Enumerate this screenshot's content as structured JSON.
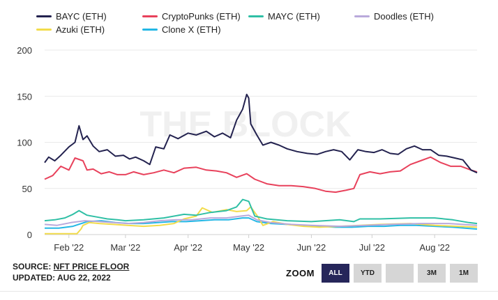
{
  "legend": [
    {
      "name": "BAYC (ETH)",
      "color": "#23224f"
    },
    {
      "name": "CryptoPunks (ETH)",
      "color": "#e8415b"
    },
    {
      "name": "MAYC (ETH)",
      "color": "#2fbfa5"
    },
    {
      "name": "Doodles (ETH)",
      "color": "#b9a9db"
    },
    {
      "name": "Azuki (ETH)",
      "color": "#f2dc4b"
    },
    {
      "name": "Clone X (ETH)",
      "color": "#23b7e5"
    }
  ],
  "watermark": "THE BLOCK",
  "footer": {
    "source_prefix": "SOURCE: ",
    "source_link": "NFT PRICE FLOOR",
    "updated": "UPDATED: AUG 22, 2022"
  },
  "zoom": {
    "label": "ZOOM",
    "buttons": [
      "ALL",
      "YTD",
      "",
      "3M",
      "1M"
    ],
    "active": "ALL"
  },
  "chart_data": {
    "type": "line",
    "title": "",
    "xlabel": "",
    "ylabel": "",
    "ylim": [
      0,
      200
    ],
    "yticks": [
      0,
      50,
      100,
      150,
      200
    ],
    "x_range": [
      "2022-01-20",
      "2022-08-22"
    ],
    "x_ticks": [
      {
        "date": "2022-02-01",
        "label": "Feb '22"
      },
      {
        "date": "2022-03-01",
        "label": "Mar '22"
      },
      {
        "date": "2022-04-01",
        "label": "Apr '22"
      },
      {
        "date": "2022-05-01",
        "label": "May '22"
      },
      {
        "date": "2022-06-01",
        "label": "Jun '22"
      },
      {
        "date": "2022-07-01",
        "label": "Jul '22"
      },
      {
        "date": "2022-08-01",
        "label": "Aug '22"
      }
    ],
    "grid": true,
    "legend_position": "top",
    "series": [
      {
        "name": "BAYC (ETH)",
        "color": "#23224f",
        "points": [
          [
            "2022-01-20",
            78
          ],
          [
            "2022-01-22",
            84
          ],
          [
            "2022-01-25",
            80
          ],
          [
            "2022-01-28",
            86
          ],
          [
            "2022-02-01",
            95
          ],
          [
            "2022-02-04",
            100
          ],
          [
            "2022-02-06",
            118
          ],
          [
            "2022-02-08",
            103
          ],
          [
            "2022-02-10",
            107
          ],
          [
            "2022-02-13",
            96
          ],
          [
            "2022-02-16",
            90
          ],
          [
            "2022-02-20",
            92
          ],
          [
            "2022-02-24",
            85
          ],
          [
            "2022-02-28",
            86
          ],
          [
            "2022-03-03",
            82
          ],
          [
            "2022-03-06",
            84
          ],
          [
            "2022-03-10",
            80
          ],
          [
            "2022-03-13",
            76
          ],
          [
            "2022-03-16",
            95
          ],
          [
            "2022-03-20",
            93
          ],
          [
            "2022-03-23",
            108
          ],
          [
            "2022-03-27",
            104
          ],
          [
            "2022-04-01",
            110
          ],
          [
            "2022-04-05",
            108
          ],
          [
            "2022-04-10",
            112
          ],
          [
            "2022-04-14",
            106
          ],
          [
            "2022-04-18",
            110
          ],
          [
            "2022-04-22",
            105
          ],
          [
            "2022-04-25",
            124
          ],
          [
            "2022-04-28",
            136
          ],
          [
            "2022-04-30",
            152
          ],
          [
            "2022-05-01",
            148
          ],
          [
            "2022-05-02",
            120
          ],
          [
            "2022-05-05",
            108
          ],
          [
            "2022-05-08",
            97
          ],
          [
            "2022-05-12",
            100
          ],
          [
            "2022-05-16",
            97
          ],
          [
            "2022-05-20",
            93
          ],
          [
            "2022-05-25",
            90
          ],
          [
            "2022-05-30",
            88
          ],
          [
            "2022-06-04",
            87
          ],
          [
            "2022-06-08",
            90
          ],
          [
            "2022-06-12",
            92
          ],
          [
            "2022-06-16",
            90
          ],
          [
            "2022-06-20",
            81
          ],
          [
            "2022-06-24",
            92
          ],
          [
            "2022-06-28",
            90
          ],
          [
            "2022-07-02",
            89
          ],
          [
            "2022-07-06",
            92
          ],
          [
            "2022-07-10",
            88
          ],
          [
            "2022-07-14",
            87
          ],
          [
            "2022-07-18",
            93
          ],
          [
            "2022-07-22",
            96
          ],
          [
            "2022-07-26",
            92
          ],
          [
            "2022-07-30",
            92
          ],
          [
            "2022-08-03",
            86
          ],
          [
            "2022-08-07",
            85
          ],
          [
            "2022-08-11",
            83
          ],
          [
            "2022-08-15",
            81
          ],
          [
            "2022-08-19",
            70
          ],
          [
            "2022-08-22",
            67
          ]
        ]
      },
      {
        "name": "CryptoPunks (ETH)",
        "color": "#e8415b",
        "points": [
          [
            "2022-01-20",
            60
          ],
          [
            "2022-01-24",
            64
          ],
          [
            "2022-01-28",
            74
          ],
          [
            "2022-02-01",
            70
          ],
          [
            "2022-02-04",
            83
          ],
          [
            "2022-02-08",
            80
          ],
          [
            "2022-02-10",
            70
          ],
          [
            "2022-02-13",
            71
          ],
          [
            "2022-02-17",
            66
          ],
          [
            "2022-02-21",
            68
          ],
          [
            "2022-02-25",
            65
          ],
          [
            "2022-03-01",
            65
          ],
          [
            "2022-03-05",
            68
          ],
          [
            "2022-03-10",
            65
          ],
          [
            "2022-03-15",
            67
          ],
          [
            "2022-03-20",
            70
          ],
          [
            "2022-03-25",
            67
          ],
          [
            "2022-03-30",
            72
          ],
          [
            "2022-04-05",
            73
          ],
          [
            "2022-04-10",
            70
          ],
          [
            "2022-04-15",
            69
          ],
          [
            "2022-04-20",
            67
          ],
          [
            "2022-04-25",
            62
          ],
          [
            "2022-04-30",
            66
          ],
          [
            "2022-05-04",
            60
          ],
          [
            "2022-05-10",
            55
          ],
          [
            "2022-05-16",
            53
          ],
          [
            "2022-05-22",
            53
          ],
          [
            "2022-05-28",
            52
          ],
          [
            "2022-06-03",
            50
          ],
          [
            "2022-06-08",
            47
          ],
          [
            "2022-06-13",
            46
          ],
          [
            "2022-06-18",
            48
          ],
          [
            "2022-06-22",
            50
          ],
          [
            "2022-06-25",
            65
          ],
          [
            "2022-06-30",
            68
          ],
          [
            "2022-07-05",
            66
          ],
          [
            "2022-07-10",
            68
          ],
          [
            "2022-07-15",
            69
          ],
          [
            "2022-07-20",
            76
          ],
          [
            "2022-07-25",
            80
          ],
          [
            "2022-07-30",
            84
          ],
          [
            "2022-08-04",
            78
          ],
          [
            "2022-08-09",
            74
          ],
          [
            "2022-08-14",
            74
          ],
          [
            "2022-08-19",
            70
          ],
          [
            "2022-08-22",
            68
          ]
        ]
      },
      {
        "name": "MAYC (ETH)",
        "color": "#2fbfa5",
        "points": [
          [
            "2022-01-20",
            15
          ],
          [
            "2022-01-25",
            16
          ],
          [
            "2022-01-30",
            18
          ],
          [
            "2022-02-03",
            22
          ],
          [
            "2022-02-06",
            26
          ],
          [
            "2022-02-10",
            21
          ],
          [
            "2022-02-15",
            19
          ],
          [
            "2022-02-20",
            17
          ],
          [
            "2022-02-25",
            16
          ],
          [
            "2022-03-01",
            15
          ],
          [
            "2022-03-10",
            16
          ],
          [
            "2022-03-20",
            18
          ],
          [
            "2022-03-30",
            22
          ],
          [
            "2022-04-05",
            21
          ],
          [
            "2022-04-12",
            24
          ],
          [
            "2022-04-20",
            26
          ],
          [
            "2022-04-25",
            30
          ],
          [
            "2022-04-28",
            38
          ],
          [
            "2022-05-01",
            36
          ],
          [
            "2022-05-04",
            20
          ],
          [
            "2022-05-10",
            17
          ],
          [
            "2022-05-20",
            15
          ],
          [
            "2022-06-01",
            14
          ],
          [
            "2022-06-15",
            16
          ],
          [
            "2022-06-22",
            14
          ],
          [
            "2022-06-25",
            17
          ],
          [
            "2022-07-05",
            17
          ],
          [
            "2022-07-20",
            18
          ],
          [
            "2022-08-01",
            18
          ],
          [
            "2022-08-10",
            16
          ],
          [
            "2022-08-18",
            13
          ],
          [
            "2022-08-22",
            12
          ]
        ]
      },
      {
        "name": "Doodles (ETH)",
        "color": "#b9a9db",
        "points": [
          [
            "2022-01-20",
            11
          ],
          [
            "2022-01-26",
            10
          ],
          [
            "2022-02-02",
            13
          ],
          [
            "2022-02-09",
            15
          ],
          [
            "2022-02-16",
            14
          ],
          [
            "2022-02-23",
            13
          ],
          [
            "2022-03-02",
            12
          ],
          [
            "2022-03-10",
            13
          ],
          [
            "2022-03-18",
            15
          ],
          [
            "2022-03-26",
            16
          ],
          [
            "2022-04-03",
            16
          ],
          [
            "2022-04-12",
            18
          ],
          [
            "2022-04-20",
            18
          ],
          [
            "2022-04-27",
            20
          ],
          [
            "2022-05-01",
            21
          ],
          [
            "2022-05-05",
            16
          ],
          [
            "2022-05-12",
            13
          ],
          [
            "2022-05-22",
            11
          ],
          [
            "2022-06-01",
            10
          ],
          [
            "2022-06-15",
            9
          ],
          [
            "2022-06-28",
            10
          ],
          [
            "2022-07-10",
            11
          ],
          [
            "2022-07-25",
            12
          ],
          [
            "2022-08-08",
            12
          ],
          [
            "2022-08-22",
            10
          ]
        ]
      },
      {
        "name": "Azuki (ETH)",
        "color": "#f2dc4b",
        "points": [
          [
            "2022-01-20",
            1
          ],
          [
            "2022-02-05",
            1
          ],
          [
            "2022-02-07",
            6
          ],
          [
            "2022-02-08",
            10
          ],
          [
            "2022-02-11",
            13
          ],
          [
            "2022-02-16",
            12
          ],
          [
            "2022-02-23",
            11
          ],
          [
            "2022-03-02",
            10
          ],
          [
            "2022-03-10",
            9
          ],
          [
            "2022-03-18",
            10
          ],
          [
            "2022-03-25",
            12
          ],
          [
            "2022-03-30",
            17
          ],
          [
            "2022-04-05",
            20
          ],
          [
            "2022-04-08",
            29
          ],
          [
            "2022-04-13",
            24
          ],
          [
            "2022-04-20",
            27
          ],
          [
            "2022-04-25",
            25
          ],
          [
            "2022-04-30",
            26
          ],
          [
            "2022-05-02",
            30
          ],
          [
            "2022-05-05",
            21
          ],
          [
            "2022-05-08",
            10
          ],
          [
            "2022-05-13",
            14
          ],
          [
            "2022-05-20",
            11
          ],
          [
            "2022-05-28",
            9
          ],
          [
            "2022-06-05",
            8
          ],
          [
            "2022-06-15",
            9
          ],
          [
            "2022-06-25",
            10
          ],
          [
            "2022-07-05",
            11
          ],
          [
            "2022-07-20",
            12
          ],
          [
            "2022-08-01",
            10
          ],
          [
            "2022-08-12",
            9
          ],
          [
            "2022-08-22",
            8
          ]
        ]
      },
      {
        "name": "Clone X (ETH)",
        "color": "#23b7e5",
        "points": [
          [
            "2022-01-20",
            7
          ],
          [
            "2022-01-27",
            7
          ],
          [
            "2022-02-03",
            9
          ],
          [
            "2022-02-10",
            14
          ],
          [
            "2022-02-17",
            15
          ],
          [
            "2022-02-24",
            13
          ],
          [
            "2022-03-03",
            12
          ],
          [
            "2022-03-10",
            12
          ],
          [
            "2022-03-17",
            13
          ],
          [
            "2022-03-24",
            14
          ],
          [
            "2022-03-31",
            14
          ],
          [
            "2022-04-07",
            15
          ],
          [
            "2022-04-14",
            16
          ],
          [
            "2022-04-21",
            16
          ],
          [
            "2022-04-28",
            18
          ],
          [
            "2022-05-01",
            18
          ],
          [
            "2022-05-05",
            14
          ],
          [
            "2022-05-12",
            12
          ],
          [
            "2022-05-20",
            11
          ],
          [
            "2022-05-28",
            10
          ],
          [
            "2022-06-05",
            9
          ],
          [
            "2022-06-13",
            8
          ],
          [
            "2022-06-21",
            8
          ],
          [
            "2022-06-29",
            9
          ],
          [
            "2022-07-07",
            9
          ],
          [
            "2022-07-15",
            10
          ],
          [
            "2022-07-23",
            10
          ],
          [
            "2022-08-01",
            9
          ],
          [
            "2022-08-10",
            8
          ],
          [
            "2022-08-16",
            7
          ],
          [
            "2022-08-22",
            6
          ]
        ]
      }
    ]
  }
}
